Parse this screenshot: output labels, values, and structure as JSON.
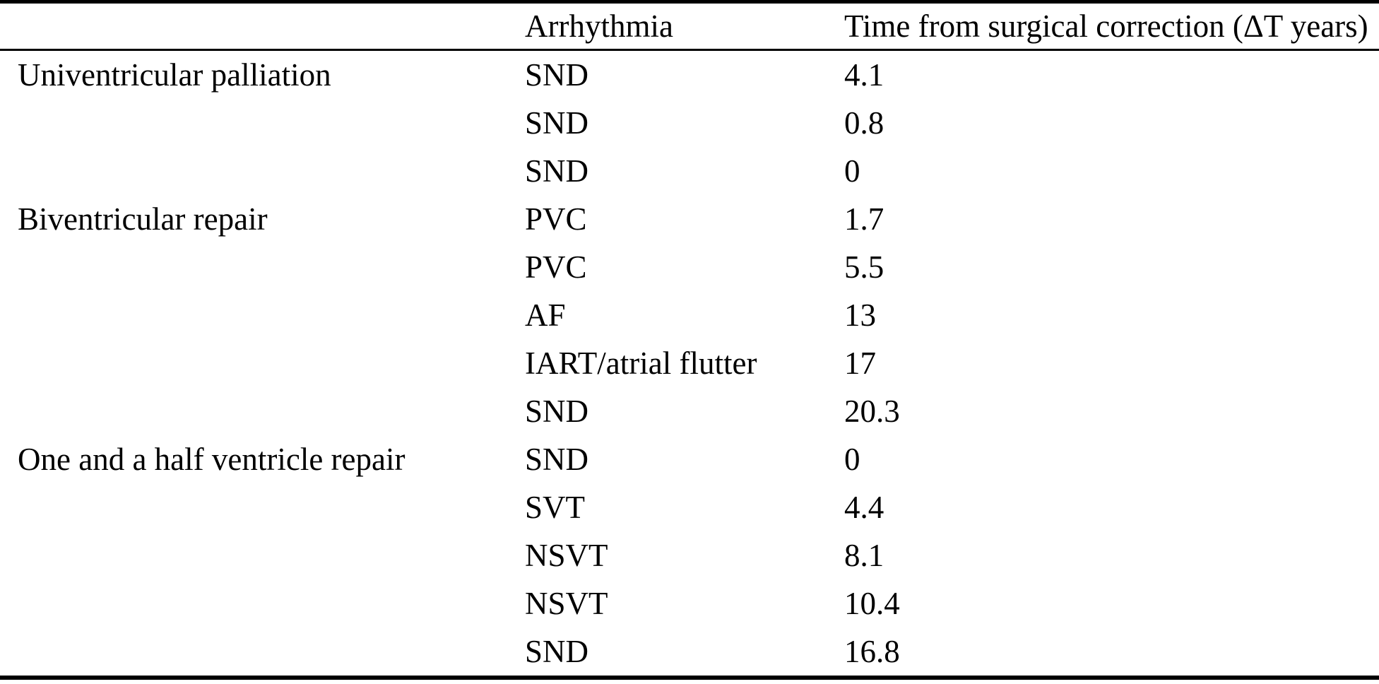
{
  "table": {
    "columns": [
      "",
      "Arrhythmia",
      "Time from surgical correction (ΔT years)"
    ],
    "rows": [
      {
        "group": "Univentricular palliation",
        "arrhythmia": "SND",
        "time": "4.1"
      },
      {
        "group": "",
        "arrhythmia": "SND",
        "time": "0.8"
      },
      {
        "group": "",
        "arrhythmia": "SND",
        "time": "0"
      },
      {
        "group": "Biventricular repair",
        "arrhythmia": "PVC",
        "time": "1.7"
      },
      {
        "group": "",
        "arrhythmia": "PVC",
        "time": "5.5"
      },
      {
        "group": "",
        "arrhythmia": "AF",
        "time": "13"
      },
      {
        "group": "",
        "arrhythmia": "IART/atrial flutter",
        "time": "17"
      },
      {
        "group": "",
        "arrhythmia": "SND",
        "time": "20.3"
      },
      {
        "group": "One and a half ventricle repair",
        "arrhythmia": "SND",
        "time": "0"
      },
      {
        "group": "",
        "arrhythmia": "SVT",
        "time": "4.4"
      },
      {
        "group": "",
        "arrhythmia": "NSVT",
        "time": "8.1"
      },
      {
        "group": "",
        "arrhythmia": "NSVT",
        "time": "10.4"
      },
      {
        "group": "",
        "arrhythmia": "SND",
        "time": "16.8"
      }
    ]
  }
}
